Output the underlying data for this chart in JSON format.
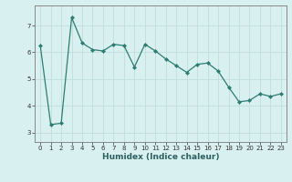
{
  "x": [
    0,
    1,
    2,
    3,
    4,
    5,
    6,
    7,
    8,
    9,
    10,
    11,
    12,
    13,
    14,
    15,
    16,
    17,
    18,
    19,
    20,
    21,
    22,
    23
  ],
  "y": [
    6.25,
    3.3,
    3.35,
    7.3,
    6.35,
    6.1,
    6.05,
    6.3,
    6.25,
    5.45,
    6.3,
    6.05,
    5.75,
    5.5,
    5.25,
    5.55,
    5.6,
    5.3,
    4.7,
    4.15,
    4.2,
    4.45,
    4.35,
    4.45
  ],
  "line_color": "#2e7d72",
  "marker": "D",
  "marker_size": 2.0,
  "linewidth": 0.9,
  "xlabel": "Humidex (Indice chaleur)",
  "xlabel_fontsize": 6.5,
  "xlim": [
    -0.5,
    23.5
  ],
  "ylim": [
    2.65,
    7.75
  ],
  "yticks": [
    3,
    4,
    5,
    6,
    7
  ],
  "xticks": [
    0,
    1,
    2,
    3,
    4,
    5,
    6,
    7,
    8,
    9,
    10,
    11,
    12,
    13,
    14,
    15,
    16,
    17,
    18,
    19,
    20,
    21,
    22,
    23
  ],
  "grid_color": "#c0dede",
  "background_color": "#d8f0f0",
  "tick_fontsize": 5.0,
  "spine_color": "#888888"
}
